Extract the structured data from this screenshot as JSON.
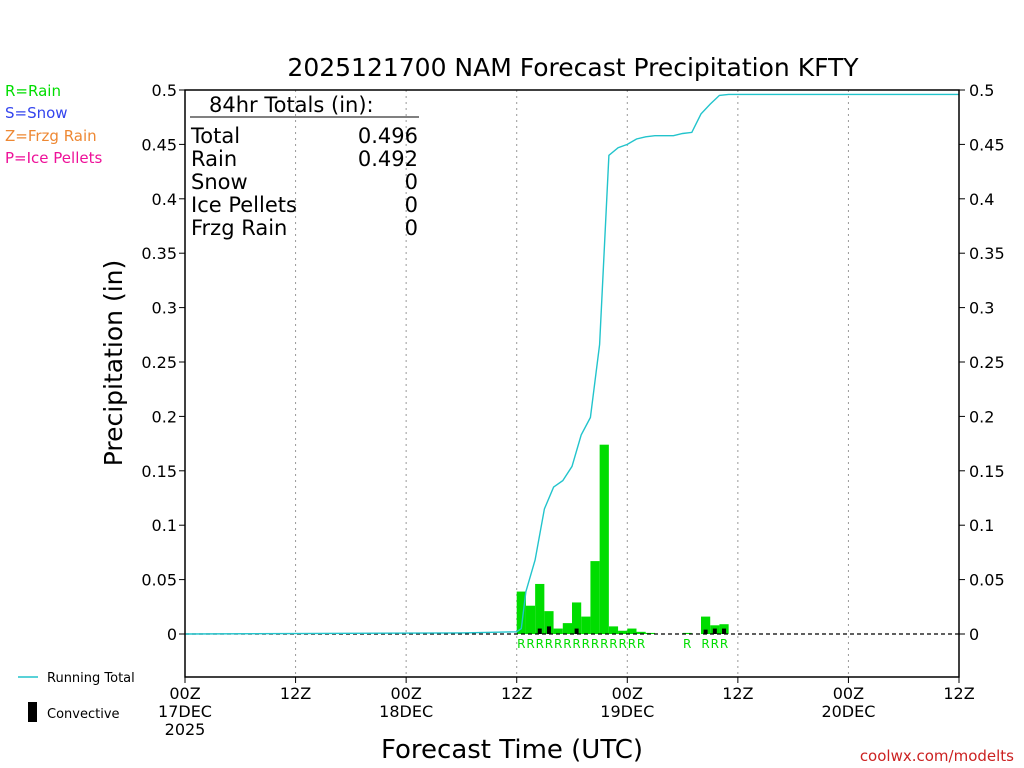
{
  "colors": {
    "rain": "#00dd00",
    "snow": "#3344ee",
    "frzg": "#ee8833",
    "ice": "#ee1199",
    "running": "#22c4cc",
    "convective": "#000000",
    "credit": "#cc2222"
  },
  "legend": {
    "rain": "R=Rain",
    "snow": "S=Snow",
    "frzg": "Z=Frzg Rain",
    "ice": "P=Ice Pellets",
    "running_total": "Running Total",
    "convective": "Convective"
  },
  "totals": {
    "heading": "84hr Totals (in):",
    "rows": [
      {
        "label": "Total",
        "value": "0.496"
      },
      {
        "label": "Rain",
        "value": "0.492"
      },
      {
        "label": "Snow",
        "value": "0"
      },
      {
        "label": "Ice Pellets",
        "value": "0"
      },
      {
        "label": "Frzg Rain",
        "value": "0"
      }
    ]
  },
  "credit": "coolwx.com/modelts",
  "chart_data": {
    "type": "bar",
    "title": "2025121700 NAM Forecast Precipitation KFTY",
    "xlabel": "Forecast Time (UTC)",
    "ylabel": "Precipitation (in)",
    "xlim": [
      0,
      84
    ],
    "ylim": [
      -0.04,
      0.5
    ],
    "yticks": [
      0,
      0.05,
      0.1,
      0.15,
      0.2,
      0.25,
      0.3,
      0.35,
      0.4,
      0.45,
      0.5
    ],
    "ytick_labels": [
      "0",
      "0.05",
      "0.1",
      "0.15",
      "0.2",
      "0.25",
      "0.3",
      "0.35",
      "0.4",
      "0.45",
      "0.5"
    ],
    "xticks": [
      {
        "hour": 0,
        "lines": [
          "00Z",
          "17DEC",
          "2025"
        ]
      },
      {
        "hour": 12,
        "lines": [
          "12Z"
        ]
      },
      {
        "hour": 24,
        "lines": [
          "00Z",
          "18DEC"
        ]
      },
      {
        "hour": 36,
        "lines": [
          "12Z"
        ]
      },
      {
        "hour": 48,
        "lines": [
          "00Z",
          "19DEC"
        ]
      },
      {
        "hour": 60,
        "lines": [
          "12Z"
        ]
      },
      {
        "hour": 72,
        "lines": [
          "00Z",
          "20DEC"
        ]
      },
      {
        "hour": 84,
        "lines": [
          "12Z"
        ]
      }
    ],
    "bar_width_hours": 1,
    "series": [
      {
        "name": "Precipitation",
        "hours": [
          37,
          38,
          39,
          40,
          41,
          42,
          43,
          44,
          45,
          46,
          47,
          48,
          49,
          50,
          51,
          52,
          55,
          56,
          57,
          58,
          59
        ],
        "values": [
          0.039,
          0.026,
          0.046,
          0.021,
          0.005,
          0.01,
          0.029,
          0.016,
          0.067,
          0.174,
          0.007,
          0.003,
          0.005,
          0.002,
          0.001,
          0.0,
          0.001,
          0.0,
          0.016,
          0.008,
          0.009
        ]
      },
      {
        "name": "Convective",
        "hours": [
          39,
          40,
          43,
          57,
          58,
          59
        ],
        "values": [
          0.005,
          0.007,
          0.005,
          0.004,
          0.005,
          0.005
        ]
      },
      {
        "name": "Running Total",
        "hours": [
          0,
          30,
          36,
          36.5,
          37,
          38,
          39,
          40,
          41,
          42,
          43,
          44,
          45,
          46,
          47,
          48,
          49,
          50,
          51,
          52,
          53,
          54,
          55,
          56,
          57,
          58,
          59,
          84
        ],
        "values": [
          0,
          0.001,
          0.002,
          0.005,
          0.039,
          0.068,
          0.115,
          0.135,
          0.141,
          0.154,
          0.183,
          0.199,
          0.266,
          0.44,
          0.447,
          0.45,
          0.455,
          0.457,
          0.458,
          0.458,
          0.458,
          0.46,
          0.461,
          0.478,
          0.487,
          0.495,
          0.496,
          0.496
        ]
      }
    ],
    "ptype_markers": [
      {
        "hour": 37,
        "label": "R"
      },
      {
        "hour": 38,
        "label": "R"
      },
      {
        "hour": 39,
        "label": "R"
      },
      {
        "hour": 40,
        "label": "R"
      },
      {
        "hour": 41,
        "label": "R"
      },
      {
        "hour": 42,
        "label": "R"
      },
      {
        "hour": 43,
        "label": "R"
      },
      {
        "hour": 44,
        "label": "R"
      },
      {
        "hour": 45,
        "label": "R"
      },
      {
        "hour": 46,
        "label": "R"
      },
      {
        "hour": 47,
        "label": "R"
      },
      {
        "hour": 48,
        "label": "R"
      },
      {
        "hour": 49,
        "label": "R"
      },
      {
        "hour": 50,
        "label": "R"
      },
      {
        "hour": 55,
        "label": "R"
      },
      {
        "hour": 57,
        "label": "R"
      },
      {
        "hour": 58,
        "label": "R"
      },
      {
        "hour": 59,
        "label": "R"
      }
    ]
  }
}
